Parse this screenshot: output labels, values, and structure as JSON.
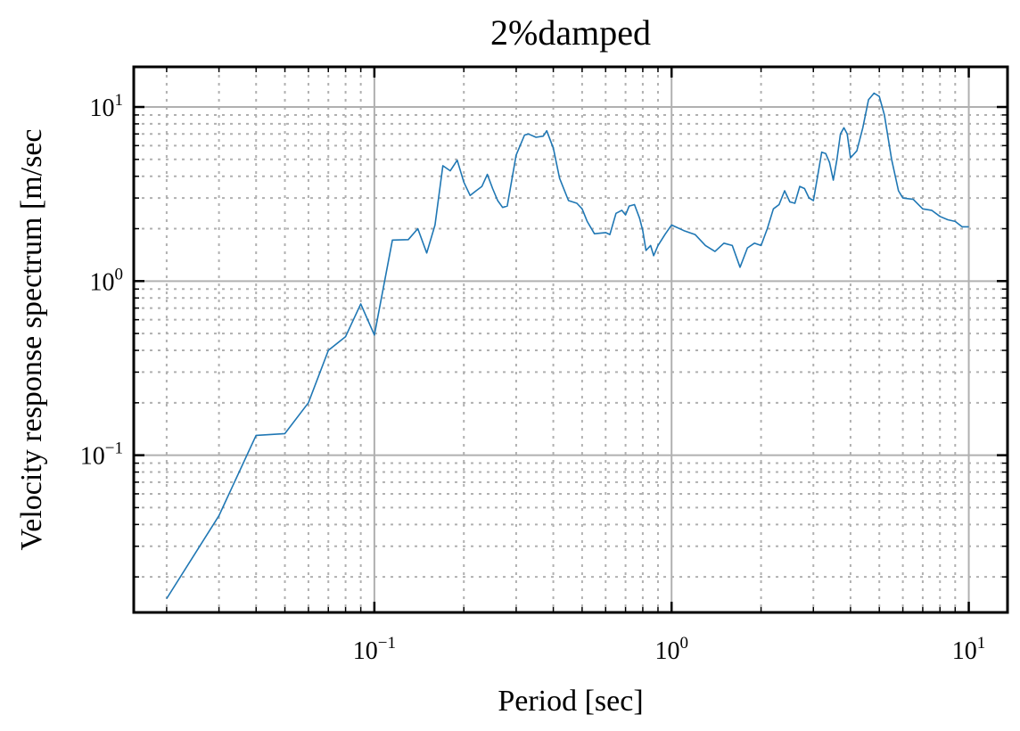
{
  "chart_data": {
    "type": "line",
    "title": "2%damped",
    "xlabel": "Period [sec]",
    "ylabel": "Velocity response spectrum [m/sec",
    "xscale": "log",
    "yscale": "log",
    "xlim": [
      0.0155,
      13.5
    ],
    "ylim": [
      0.0125,
      17
    ],
    "grid": true,
    "x_ticks": [
      {
        "value": 0.1,
        "base": "10",
        "exp": "−1"
      },
      {
        "value": 1,
        "base": "10",
        "exp": "0"
      },
      {
        "value": 10,
        "base": "10",
        "exp": "1"
      }
    ],
    "y_ticks": [
      {
        "value": 0.1,
        "base": "10",
        "exp": "−1"
      },
      {
        "value": 1,
        "base": "10",
        "exp": "0"
      },
      {
        "value": 10,
        "base": "10",
        "exp": "1"
      }
    ],
    "series": [
      {
        "color": "#1f77b4",
        "x": [
          0.02,
          0.03,
          0.04,
          0.05,
          0.06,
          0.07,
          0.08,
          0.09,
          0.1,
          0.115,
          0.13,
          0.14,
          0.15,
          0.16,
          0.17,
          0.18,
          0.19,
          0.2,
          0.21,
          0.22,
          0.23,
          0.24,
          0.25,
          0.26,
          0.27,
          0.28,
          0.3,
          0.32,
          0.33,
          0.35,
          0.37,
          0.38,
          0.4,
          0.42,
          0.45,
          0.48,
          0.5,
          0.52,
          0.55,
          0.6,
          0.62,
          0.65,
          0.68,
          0.7,
          0.72,
          0.75,
          0.78,
          0.8,
          0.82,
          0.85,
          0.87,
          0.9,
          0.95,
          1.0,
          1.1,
          1.2,
          1.3,
          1.4,
          1.5,
          1.6,
          1.7,
          1.8,
          1.9,
          2.0,
          2.1,
          2.2,
          2.3,
          2.4,
          2.5,
          2.6,
          2.7,
          2.8,
          2.9,
          3.0,
          3.1,
          3.2,
          3.3,
          3.4,
          3.5,
          3.6,
          3.7,
          3.8,
          3.9,
          4.0,
          4.2,
          4.4,
          4.6,
          4.8,
          5.0,
          5.2,
          5.5,
          5.8,
          6.0,
          6.5,
          7.0,
          7.5,
          8.0,
          8.5,
          9.0,
          9.5,
          10.0
        ],
        "y": [
          0.015,
          0.045,
          0.13,
          0.133,
          0.2,
          0.4,
          0.48,
          0.74,
          0.49,
          1.72,
          1.73,
          2.0,
          1.45,
          2.1,
          4.6,
          4.3,
          4.95,
          3.7,
          3.1,
          3.3,
          3.5,
          4.1,
          3.4,
          2.9,
          2.65,
          2.7,
          5.3,
          6.9,
          7.0,
          6.7,
          6.8,
          7.3,
          5.8,
          3.9,
          2.9,
          2.8,
          2.6,
          2.2,
          1.87,
          1.9,
          1.85,
          2.45,
          2.55,
          2.4,
          2.7,
          2.75,
          2.3,
          1.95,
          1.5,
          1.6,
          1.4,
          1.6,
          1.85,
          2.1,
          1.95,
          1.85,
          1.6,
          1.48,
          1.65,
          1.6,
          1.2,
          1.55,
          1.65,
          1.6,
          2.0,
          2.6,
          2.75,
          3.3,
          2.85,
          2.8,
          3.5,
          3.4,
          3.0,
          2.9,
          4.0,
          5.5,
          5.4,
          4.8,
          3.8,
          5.0,
          7.0,
          7.6,
          7.0,
          5.1,
          5.6,
          7.6,
          11.0,
          12.0,
          11.5,
          9.0,
          5.0,
          3.3,
          3.0,
          2.95,
          2.6,
          2.55,
          2.35,
          2.25,
          2.2,
          2.05,
          2.05
        ]
      }
    ]
  }
}
